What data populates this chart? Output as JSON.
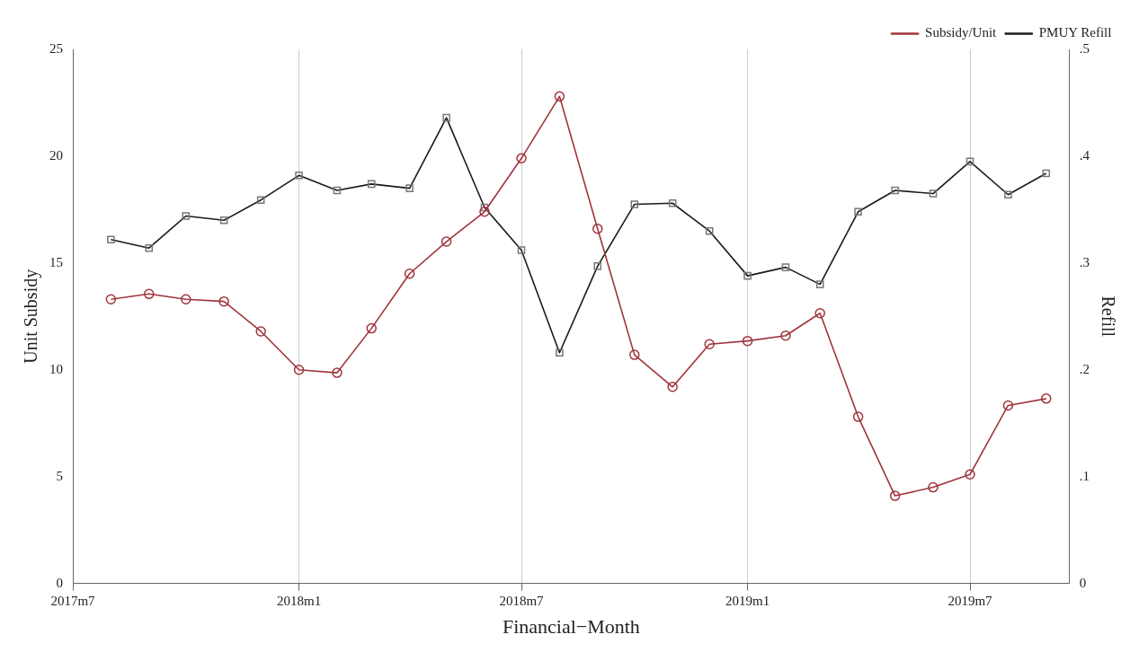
{
  "chart_data": {
    "type": "line",
    "xlabel": "Financial−Month",
    "ylabel": "Unit Subsidy",
    "y2label": "Refill",
    "x": [
      "2017-08",
      "2017-09",
      "2017-10",
      "2017-11",
      "2017-12",
      "2018-01",
      "2018-02",
      "2018-03",
      "2018-04",
      "2018-05",
      "2018-06",
      "2018-07",
      "2018-08",
      "2018-09",
      "2018-10",
      "2018-11",
      "2018-12",
      "2019-01",
      "2019-02",
      "2019-03",
      "2019-04",
      "2019-05",
      "2019-06",
      "2019-07",
      "2019-08",
      "2019-09"
    ],
    "series": [
      {
        "name": "Subsidy/Unit",
        "color": "#a0343c",
        "marker": "circle",
        "values": [
          13.3,
          13.55,
          13.3,
          13.2,
          11.8,
          10.0,
          9.86,
          11.94,
          14.5,
          16.0,
          17.4,
          19.9,
          22.8,
          16.6,
          10.7,
          9.2,
          11.2,
          11.35,
          11.6,
          12.65,
          7.8,
          4.1,
          4.5,
          5.1,
          8.33,
          8.65
        ]
      },
      {
        "name": "PMUY Refill",
        "color": "#1a1a1a",
        "marker": "square",
        "axis": "y2",
        "values": [
          0.322,
          0.314,
          0.344,
          0.34,
          0.359,
          0.382,
          0.368,
          0.374,
          0.37,
          0.436,
          0.352,
          0.312,
          0.216,
          0.297,
          0.355,
          0.356,
          0.33,
          0.288,
          0.296,
          0.28,
          0.348,
          0.368,
          0.365,
          0.395,
          0.364,
          0.384
        ]
      }
    ],
    "xlim": [
      "2017-07",
      "2019-09-20"
    ],
    "xticks": [
      {
        "value": "2017-07",
        "label": "2017m7"
      },
      {
        "value": "2018-01",
        "label": "2018m1"
      },
      {
        "value": "2018-07",
        "label": "2018m7"
      },
      {
        "value": "2019-01",
        "label": "2019m1"
      },
      {
        "value": "2019-07",
        "label": "2019m7"
      }
    ],
    "ylim": [
      0,
      25
    ],
    "yticks": [
      0,
      5,
      10,
      15,
      20,
      25
    ],
    "y2lim": [
      0,
      0.5
    ],
    "y2ticks": [
      0,
      {
        "value": 0.1,
        "label": ".1"
      },
      {
        "value": 0.2,
        "label": ".2"
      },
      {
        "value": 0.3,
        "label": ".3"
      },
      {
        "value": 0.4,
        "label": ".4"
      },
      {
        "value": 0.5,
        "label": ".5"
      }
    ],
    "grid": "x",
    "legend": "top right",
    "line_style": "solid"
  }
}
